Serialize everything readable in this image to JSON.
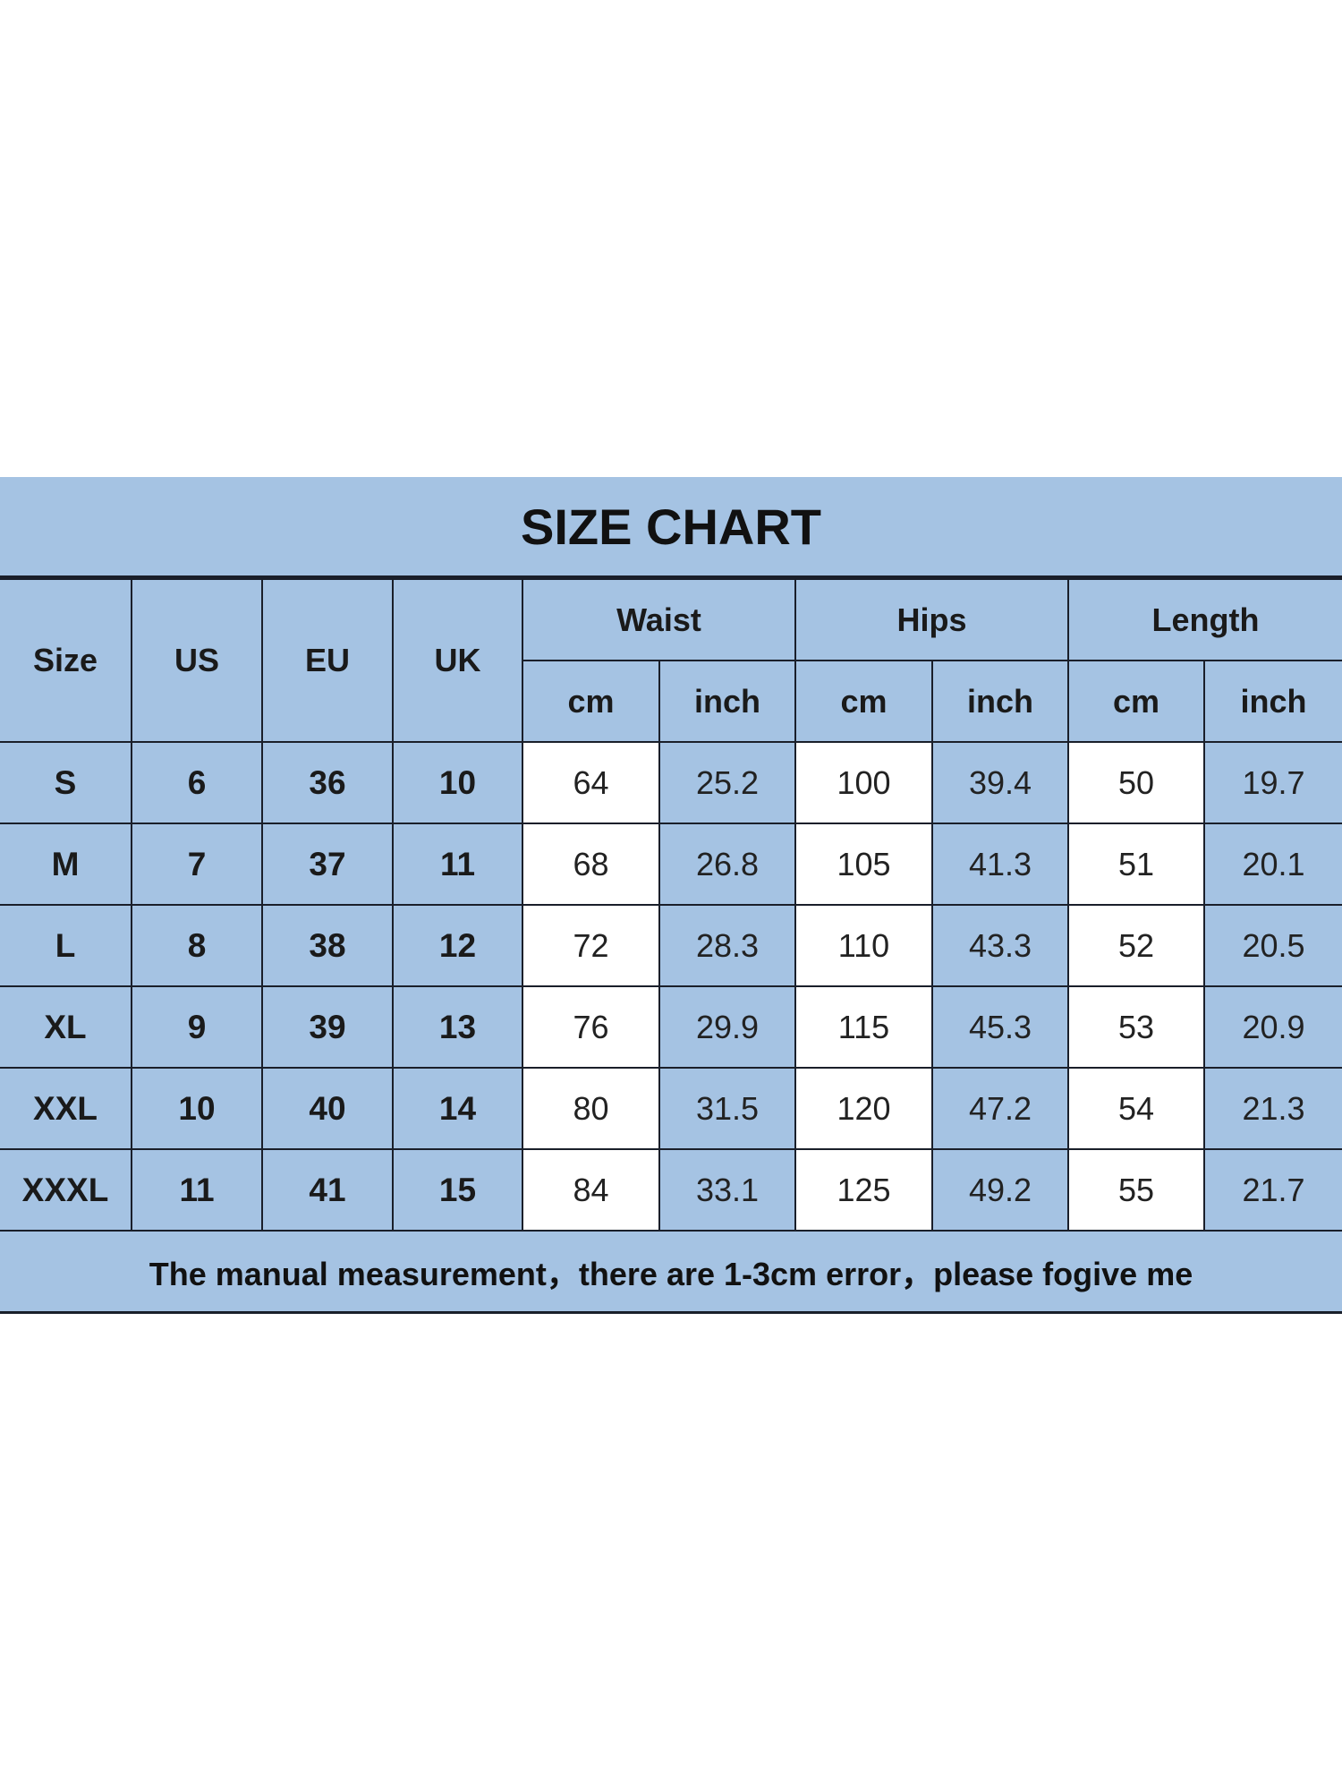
{
  "title": "SIZE CHART",
  "headers": {
    "size": "Size",
    "us": "US",
    "eu": "EU",
    "uk": "UK",
    "groups": [
      "Waist",
      "Hips",
      "Length"
    ],
    "units": [
      "cm",
      "inch",
      "cm",
      "inch",
      "cm",
      "inch"
    ]
  },
  "rows": [
    [
      "S",
      "6",
      "36",
      "10",
      "64",
      "25.2",
      "100",
      "39.4",
      "50",
      "19.7"
    ],
    [
      "M",
      "7",
      "37",
      "11",
      "68",
      "26.8",
      "105",
      "41.3",
      "51",
      "20.1"
    ],
    [
      "L",
      "8",
      "38",
      "12",
      "72",
      "28.3",
      "110",
      "43.3",
      "52",
      "20.5"
    ],
    [
      "XL",
      "9",
      "39",
      "13",
      "76",
      "29.9",
      "115",
      "45.3",
      "53",
      "20.9"
    ],
    [
      "XXL",
      "10",
      "40",
      "14",
      "80",
      "31.5",
      "120",
      "47.2",
      "54",
      "21.3"
    ],
    [
      "XXXL",
      "11",
      "41",
      "15",
      "84",
      "33.1",
      "125",
      "49.2",
      "55",
      "21.7"
    ]
  ],
  "footer": "The manual measurement，there are 1-3cm error，please fogive me",
  "colors": {
    "background_blue": "#a5c3e3",
    "cell_white": "#ffffff",
    "border": "#1a1f2a"
  }
}
